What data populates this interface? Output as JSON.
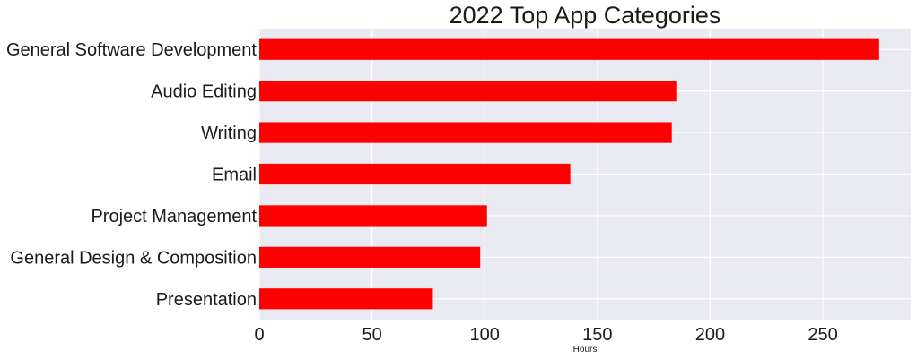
{
  "chart_data": {
    "type": "bar",
    "orientation": "horizontal",
    "title": "2022 Top App Categories",
    "xlabel": "Hours",
    "ylabel": "",
    "categories": [
      "General Software Development",
      "Audio Editing",
      "Writing",
      "Email",
      "Project Management",
      "General Design & Composition",
      "Presentation"
    ],
    "values": [
      275,
      185,
      183,
      138,
      101,
      98,
      77
    ],
    "xlim": [
      0,
      289
    ],
    "xticks": [
      0,
      50,
      100,
      150,
      200,
      250
    ],
    "grid": true,
    "colors": {
      "bar": "#ff0000",
      "plot_background": "#eaeaf2",
      "grid": "#ffffff"
    }
  }
}
